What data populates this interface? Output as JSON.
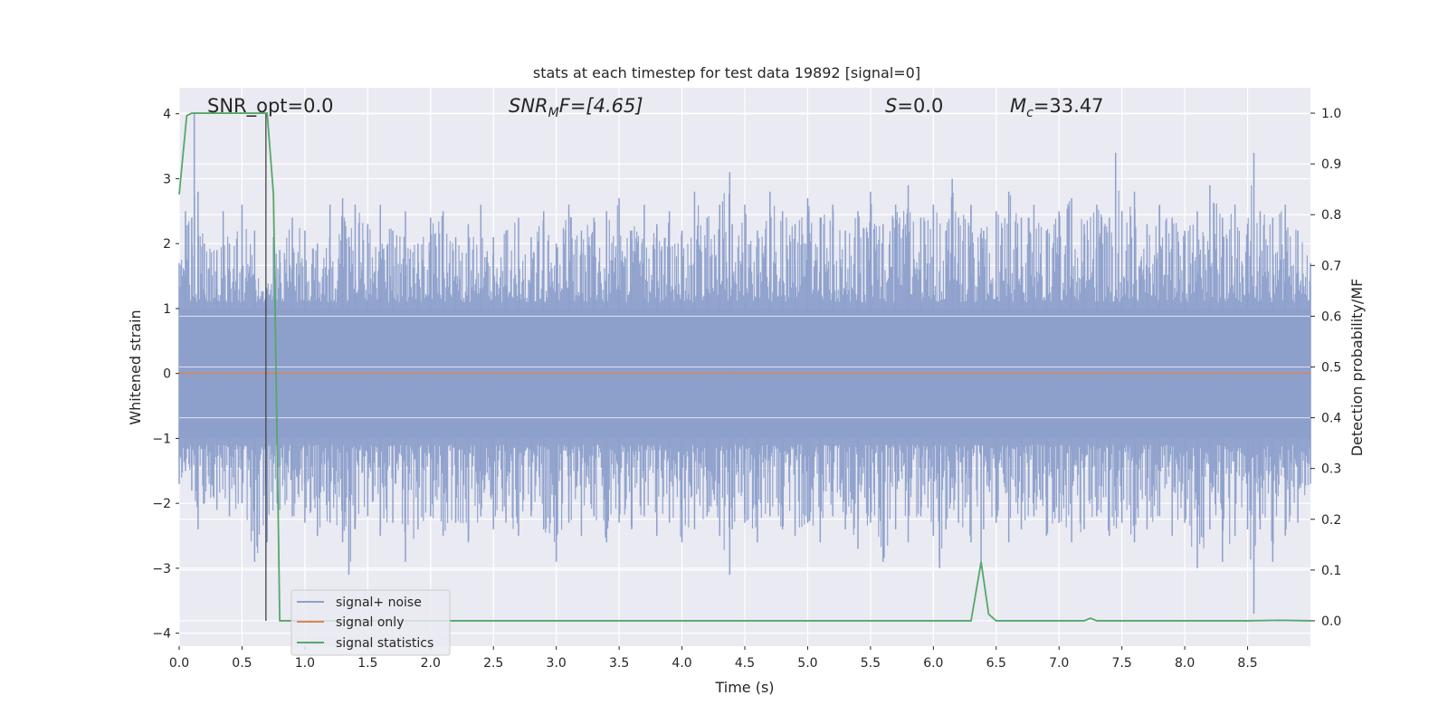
{
  "chart_data": {
    "type": "line",
    "title": "stats at each timestep for test data 19892 [signal=0]",
    "xlabel": "Time (s)",
    "ylabel_left": "Whitened strain",
    "ylabel_right": "Detection probability/MF",
    "xlim": [
      0.0,
      9.0
    ],
    "ylim_left": [
      -4.2,
      4.4
    ],
    "ylim_right": [
      -0.05,
      1.05
    ],
    "x_ticks": [
      "0.0",
      "0.5",
      "1.0",
      "1.5",
      "2.0",
      "2.5",
      "3.0",
      "3.5",
      "4.0",
      "4.5",
      "5.0",
      "5.5",
      "6.0",
      "6.5",
      "7.0",
      "7.5",
      "8.0",
      "8.5"
    ],
    "y_left_ticks": [
      "4",
      "3",
      "2",
      "1",
      "0",
      "−1",
      "−2",
      "−3",
      "−4"
    ],
    "y_right_ticks": [
      "1.0",
      "0.9",
      "0.8",
      "0.7",
      "0.6",
      "0.5",
      "0.4",
      "0.3",
      "0.2",
      "0.1",
      "0.0"
    ],
    "grid": true,
    "legend_position": "lower-left",
    "annotations": {
      "snr_opt": "SNR_opt=0.0",
      "snr_mf_base": "SNR",
      "snr_mf_sub": "M",
      "snr_mf_rest": "F=[4.65]",
      "s_label": "S",
      "s_value": "=0.0",
      "mc_label": "M",
      "mc_sub": "c",
      "mc_value": "=33.47"
    },
    "series": [
      {
        "name": "signal+ noise",
        "axis": "left",
        "color": "#8da0cb",
        "description_of_values": "noise envelope",
        "upper_envelope": [
          [
            0.0,
            1.7
          ],
          [
            0.05,
            2.5
          ],
          [
            0.1,
            2.4
          ],
          [
            0.12,
            4.0
          ],
          [
            0.15,
            2.8
          ],
          [
            0.2,
            2.0
          ],
          [
            0.3,
            1.9
          ],
          [
            0.35,
            2.5
          ],
          [
            0.4,
            2.0
          ],
          [
            0.5,
            2.6
          ],
          [
            0.6,
            2.2
          ],
          [
            0.7,
            1.3
          ],
          [
            0.75,
            2.1
          ],
          [
            0.8,
            1.9
          ],
          [
            0.9,
            2.4
          ],
          [
            1.0,
            2.2
          ],
          [
            1.1,
            2.0
          ],
          [
            1.2,
            2.6
          ],
          [
            1.3,
            2.7
          ],
          [
            1.35,
            2.1
          ],
          [
            1.4,
            2.6
          ],
          [
            1.5,
            2.3
          ],
          [
            1.6,
            2.6
          ],
          [
            1.7,
            2.2
          ],
          [
            1.8,
            2.5
          ],
          [
            1.9,
            2.0
          ],
          [
            2.0,
            2.4
          ],
          [
            2.1,
            2.5
          ],
          [
            2.2,
            2.1
          ],
          [
            2.3,
            2.3
          ],
          [
            2.4,
            2.6
          ],
          [
            2.5,
            2.1
          ],
          [
            2.6,
            2.2
          ],
          [
            2.7,
            2.4
          ],
          [
            2.8,
            2.1
          ],
          [
            2.9,
            2.5
          ],
          [
            3.0,
            2.0
          ],
          [
            3.1,
            2.6
          ],
          [
            3.2,
            2.2
          ],
          [
            3.3,
            2.4
          ],
          [
            3.4,
            2.5
          ],
          [
            3.5,
            2.7
          ],
          [
            3.6,
            2.2
          ],
          [
            3.7,
            2.6
          ],
          [
            3.8,
            2.3
          ],
          [
            3.9,
            2.5
          ],
          [
            4.0,
            2.2
          ],
          [
            4.1,
            2.8
          ],
          [
            4.2,
            2.4
          ],
          [
            4.3,
            2.6
          ],
          [
            4.38,
            3.1
          ],
          [
            4.4,
            2.3
          ],
          [
            4.5,
            2.6
          ],
          [
            4.6,
            2.2
          ],
          [
            4.7,
            2.8
          ],
          [
            4.8,
            2.5
          ],
          [
            4.9,
            2.3
          ],
          [
            5.0,
            2.7
          ],
          [
            5.1,
            2.4
          ],
          [
            5.2,
            2.6
          ],
          [
            5.3,
            2.2
          ],
          [
            5.4,
            2.5
          ],
          [
            5.5,
            2.8
          ],
          [
            5.6,
            2.3
          ],
          [
            5.7,
            2.6
          ],
          [
            5.8,
            2.9
          ],
          [
            5.9,
            2.4
          ],
          [
            6.0,
            2.6
          ],
          [
            6.1,
            2.2
          ],
          [
            6.15,
            3.0
          ],
          [
            6.2,
            2.4
          ],
          [
            6.3,
            2.6
          ],
          [
            6.4,
            2.2
          ],
          [
            6.5,
            2.5
          ],
          [
            6.6,
            2.8
          ],
          [
            6.7,
            2.4
          ],
          [
            6.8,
            2.6
          ],
          [
            6.9,
            2.2
          ],
          [
            7.0,
            2.5
          ],
          [
            7.1,
            2.7
          ],
          [
            7.2,
            2.3
          ],
          [
            7.3,
            2.6
          ],
          [
            7.4,
            2.4
          ],
          [
            7.45,
            3.4
          ],
          [
            7.5,
            2.5
          ],
          [
            7.6,
            2.8
          ],
          [
            7.7,
            2.3
          ],
          [
            7.8,
            2.6
          ],
          [
            7.9,
            2.4
          ],
          [
            8.0,
            2.2
          ],
          [
            8.1,
            2.5
          ],
          [
            8.2,
            2.9
          ],
          [
            8.3,
            2.4
          ],
          [
            8.4,
            2.6
          ],
          [
            8.5,
            2.3
          ],
          [
            8.55,
            3.4
          ],
          [
            8.6,
            2.5
          ],
          [
            8.7,
            2.4
          ],
          [
            8.8,
            2.6
          ],
          [
            8.9,
            2.2
          ],
          [
            9.0,
            1.7
          ]
        ],
        "lower_envelope": [
          [
            0.0,
            -1.7
          ],
          [
            0.05,
            -1.5
          ],
          [
            0.1,
            -1.8
          ],
          [
            0.15,
            -2.4
          ],
          [
            0.2,
            -2.0
          ],
          [
            0.3,
            -2.1
          ],
          [
            0.4,
            -2.2
          ],
          [
            0.5,
            -2.0
          ],
          [
            0.6,
            -2.9
          ],
          [
            0.7,
            -2.6
          ],
          [
            0.8,
            -2.1
          ],
          [
            0.9,
            -2.2
          ],
          [
            1.0,
            -2.3
          ],
          [
            1.1,
            -2.5
          ],
          [
            1.2,
            -2.3
          ],
          [
            1.3,
            -2.6
          ],
          [
            1.35,
            -3.1
          ],
          [
            1.4,
            -2.4
          ],
          [
            1.5,
            -2.2
          ],
          [
            1.6,
            -2.5
          ],
          [
            1.7,
            -2.3
          ],
          [
            1.8,
            -2.9
          ],
          [
            1.9,
            -2.4
          ],
          [
            2.0,
            -2.2
          ],
          [
            2.1,
            -2.5
          ],
          [
            2.2,
            -2.3
          ],
          [
            2.3,
            -2.6
          ],
          [
            2.4,
            -2.2
          ],
          [
            2.5,
            -2.4
          ],
          [
            2.6,
            -2.3
          ],
          [
            2.7,
            -2.5
          ],
          [
            2.8,
            -2.2
          ],
          [
            2.9,
            -2.4
          ],
          [
            3.0,
            -2.9
          ],
          [
            3.1,
            -2.3
          ],
          [
            3.2,
            -2.5
          ],
          [
            3.3,
            -2.2
          ],
          [
            3.4,
            -2.6
          ],
          [
            3.5,
            -2.3
          ],
          [
            3.6,
            -2.4
          ],
          [
            3.7,
            -2.2
          ],
          [
            3.8,
            -2.5
          ],
          [
            3.9,
            -2.3
          ],
          [
            4.0,
            -2.6
          ],
          [
            4.1,
            -2.4
          ],
          [
            4.2,
            -2.2
          ],
          [
            4.3,
            -2.5
          ],
          [
            4.38,
            -3.1
          ],
          [
            4.4,
            -2.4
          ],
          [
            4.5,
            -2.3
          ],
          [
            4.6,
            -2.6
          ],
          [
            4.7,
            -2.2
          ],
          [
            4.8,
            -2.4
          ],
          [
            4.9,
            -2.5
          ],
          [
            5.0,
            -2.3
          ],
          [
            5.1,
            -2.6
          ],
          [
            5.2,
            -2.2
          ],
          [
            5.3,
            -2.4
          ],
          [
            5.4,
            -2.7
          ],
          [
            5.5,
            -2.3
          ],
          [
            5.6,
            -2.9
          ],
          [
            5.7,
            -2.4
          ],
          [
            5.8,
            -2.6
          ],
          [
            5.9,
            -2.2
          ],
          [
            6.0,
            -2.5
          ],
          [
            6.05,
            -3.0
          ],
          [
            6.1,
            -2.4
          ],
          [
            6.2,
            -2.3
          ],
          [
            6.3,
            -2.6
          ],
          [
            6.38,
            -3.0
          ],
          [
            6.4,
            -2.4
          ],
          [
            6.5,
            -2.3
          ],
          [
            6.6,
            -2.6
          ],
          [
            6.7,
            -2.4
          ],
          [
            6.8,
            -2.2
          ],
          [
            6.9,
            -2.5
          ],
          [
            7.0,
            -2.3
          ],
          [
            7.1,
            -2.6
          ],
          [
            7.2,
            -2.4
          ],
          [
            7.3,
            -2.2
          ],
          [
            7.4,
            -2.5
          ],
          [
            7.5,
            -2.3
          ],
          [
            7.6,
            -2.6
          ],
          [
            7.7,
            -2.4
          ],
          [
            7.8,
            -2.2
          ],
          [
            7.9,
            -2.5
          ],
          [
            8.0,
            -2.3
          ],
          [
            8.1,
            -3.0
          ],
          [
            8.2,
            -2.4
          ],
          [
            8.3,
            -2.9
          ],
          [
            8.4,
            -2.5
          ],
          [
            8.5,
            -2.4
          ],
          [
            8.55,
            -3.7
          ],
          [
            8.6,
            -2.4
          ],
          [
            8.7,
            -2.9
          ],
          [
            8.8,
            -2.5
          ],
          [
            8.9,
            -2.3
          ],
          [
            9.0,
            -1.7
          ]
        ]
      },
      {
        "name": "signal only",
        "axis": "left",
        "color": "#dd8452",
        "x": [
          0.0,
          9.0
        ],
        "y": [
          0.0,
          0.0
        ]
      },
      {
        "name": "signal statistics",
        "axis": "right",
        "color": "#55a868",
        "x": [
          0.0,
          0.06,
          0.1,
          0.2,
          0.3,
          0.4,
          0.5,
          0.6,
          0.7,
          0.75,
          0.8,
          0.85,
          0.9,
          1.0,
          2.0,
          3.0,
          4.0,
          5.0,
          6.0,
          6.3,
          6.38,
          6.44,
          6.5,
          7.0,
          7.2,
          7.25,
          7.3,
          7.5,
          8.0,
          8.5,
          8.75,
          9.0
        ],
        "y": [
          0.84,
          0.995,
          1.0,
          1.0,
          1.0,
          1.0,
          1.0,
          1.0,
          1.0,
          0.84,
          0.0,
          0.0,
          0.0,
          0.0,
          0.0,
          0.0,
          0.0,
          0.0,
          0.0,
          0.0,
          0.116,
          0.013,
          0.0,
          0.0,
          0.0,
          0.005,
          0.0,
          0.0,
          0.0,
          0.0,
          0.001,
          0.0
        ]
      }
    ],
    "vertical_marker_x": 0.69,
    "colors": {
      "plot_bg": "#eaeaf2",
      "grid": "#ffffff",
      "marker": "#444444"
    }
  }
}
